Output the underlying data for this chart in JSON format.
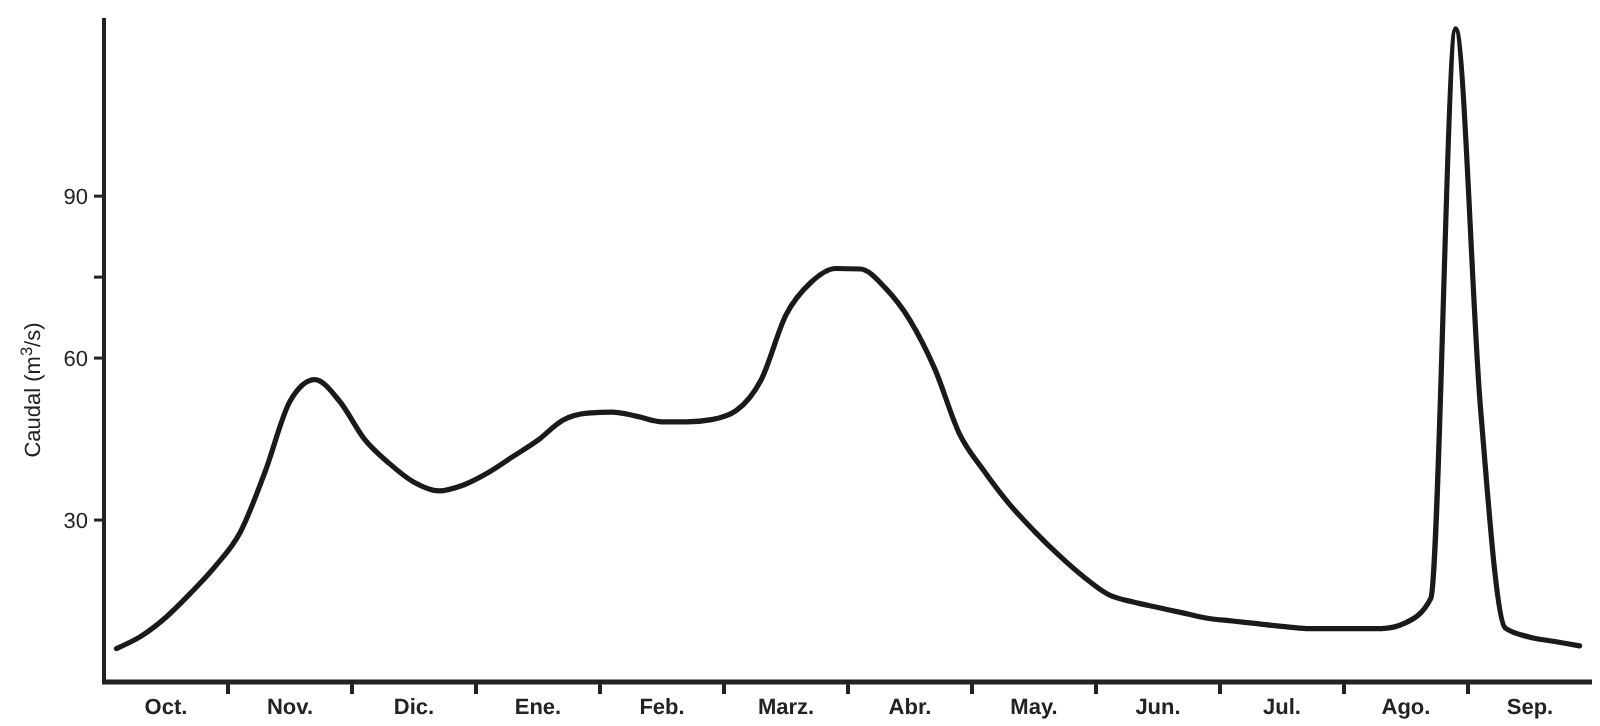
{
  "chart_data": {
    "type": "line",
    "ylabel": "Caudal (m$^{3}$/s)",
    "categories": [
      null,
      null,
      "Oct.",
      null,
      null,
      null,
      null,
      "Nov.",
      null,
      null,
      null,
      null,
      "Dic.",
      null,
      null,
      null,
      null,
      "Ene.",
      null,
      null,
      null,
      null,
      "Feb.",
      null,
      null,
      null,
      null,
      "Marz.",
      null,
      null,
      null,
      null,
      "Abr.",
      null,
      null,
      null,
      null,
      "May.",
      null,
      null,
      null,
      null,
      "Jun.",
      null,
      null,
      null,
      null,
      "Jul.",
      null,
      null,
      null,
      null,
      "Ago.",
      null,
      null,
      null,
      null,
      "Sep.",
      null,
      null
    ],
    "ylim": [
      0,
      123
    ],
    "yticks": [
      30,
      60,
      {
        "value": 75,
        "label": null
      },
      90
    ],
    "marker": "none",
    "line_style": "solid",
    "series": [
      {
        "color": "#1a1a1a",
        "values": [
          6.2,
          8.5,
          12,
          16.5,
          21.5,
          27.8,
          39,
          52,
          56,
          52,
          45,
          40.5,
          37,
          35.4,
          36.5,
          38.8,
          41.8,
          44.8,
          48.5,
          49.8,
          50,
          49.2,
          48.2,
          48.2,
          48.6,
          50.3,
          56,
          68,
          74,
          76.6,
          76.5,
          73,
          67,
          58,
          45.9,
          39,
          33,
          28,
          23.5,
          19.5,
          16.2,
          14.8,
          13.8,
          12.8,
          11.8,
          11.3,
          10.8,
          10.3,
          9.9,
          9.9,
          9.9,
          9.9,
          11,
          15.5,
          121,
          51,
          10,
          8.3,
          7.5,
          6.7
        ]
      }
    ]
  }
}
